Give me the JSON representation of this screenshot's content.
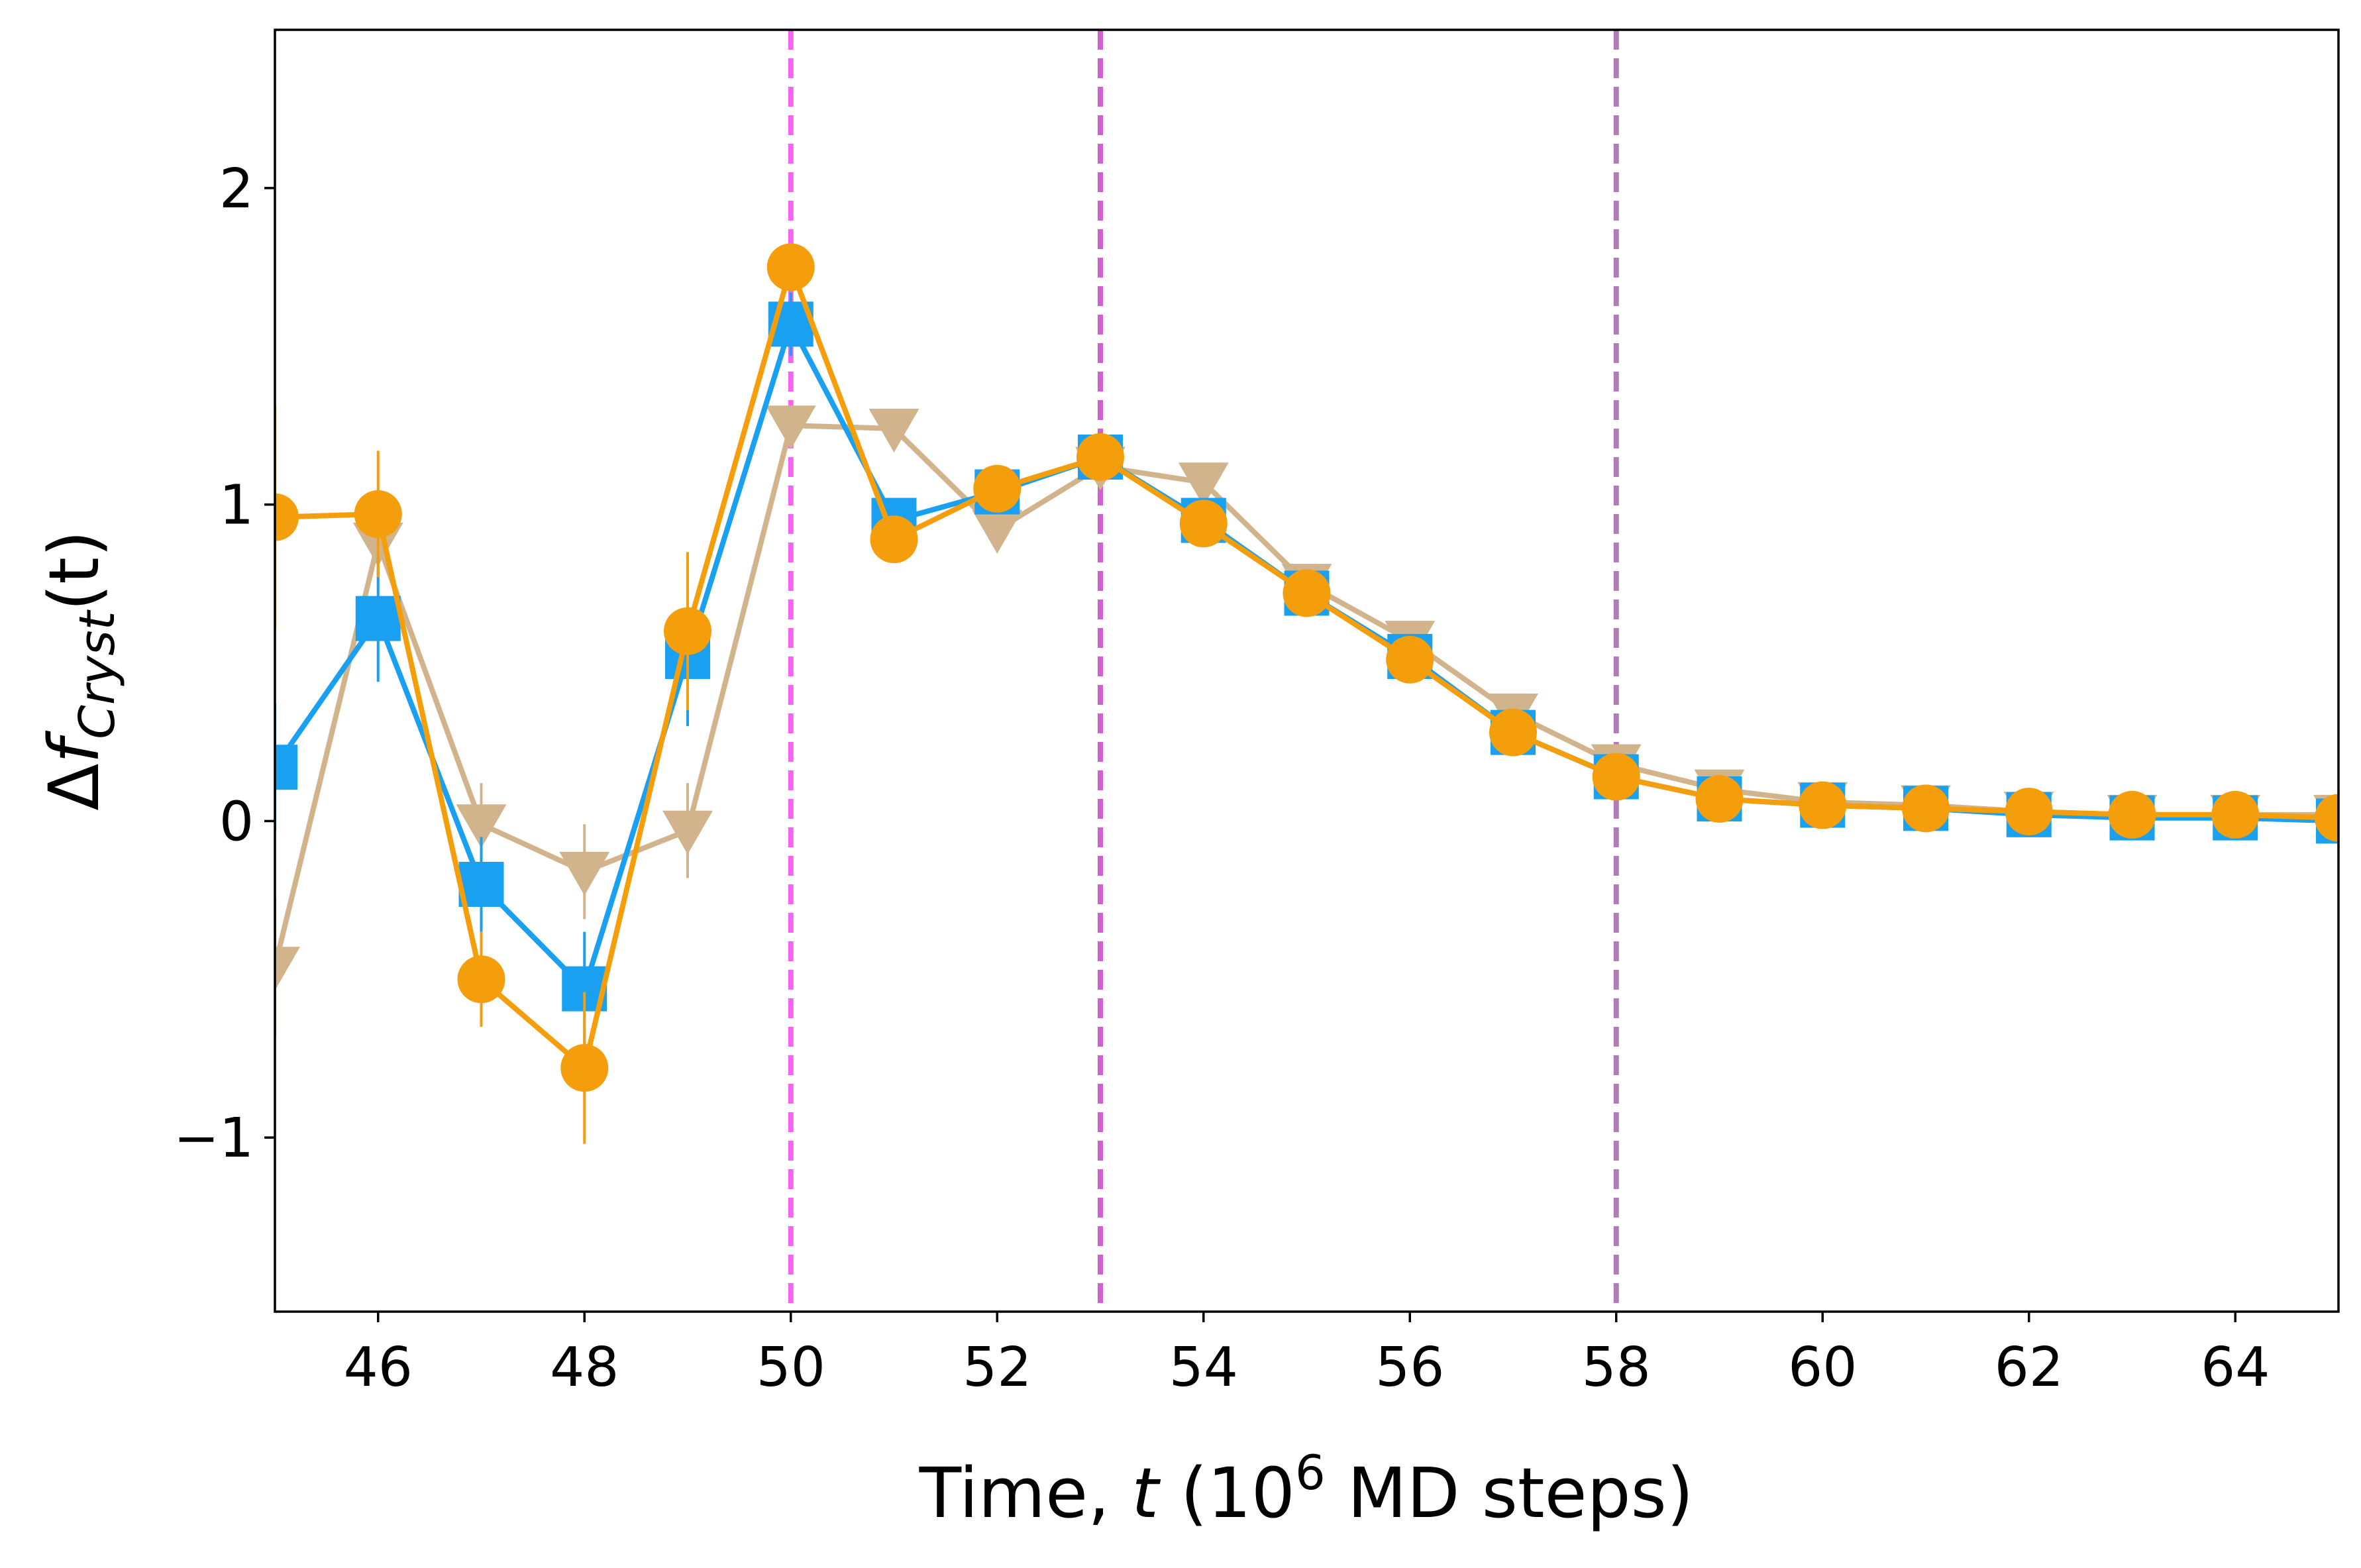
{
  "chart_data": {
    "type": "line",
    "xlabel": {
      "prefix": "Time, ",
      "var": "t",
      "mid": " (10",
      "sup": "6",
      "suffix": " MD steps)"
    },
    "ylabel": {
      "delta": "Δ",
      "var": "f",
      "sub": "Cryst",
      "arg": "(t)"
    },
    "xlim": [
      45,
      65
    ],
    "ylim": [
      -1.55,
      2.5
    ],
    "xticks": [
      46,
      48,
      50,
      52,
      54,
      56,
      58,
      60,
      62,
      64
    ],
    "xtick_labels": [
      "46",
      "48",
      "50",
      "52",
      "54",
      "56",
      "58",
      "60",
      "62",
      "64"
    ],
    "yticks": [
      -1,
      0,
      1,
      2
    ],
    "ytick_labels": [
      "−1",
      "0",
      "1",
      "2"
    ],
    "vlines": [
      {
        "x": 50,
        "color": "#f564f5"
      },
      {
        "x": 53,
        "color": "#d15fd1"
      },
      {
        "x": 58,
        "color": "#b07db5"
      }
    ],
    "series": [
      {
        "color": "#d2b48c",
        "marker": "triangle-down",
        "x": [
          45,
          46,
          47,
          48,
          49,
          50,
          51,
          52,
          53,
          54,
          55,
          56,
          57,
          58,
          59,
          60,
          61,
          62,
          63,
          64,
          65
        ],
        "y": [
          -0.46,
          0.88,
          -0.01,
          -0.16,
          -0.03,
          1.25,
          1.24,
          0.92,
          1.12,
          1.07,
          0.75,
          0.57,
          0.34,
          0.18,
          0.1,
          0.06,
          0.05,
          0.03,
          0.02,
          0.02,
          0.02
        ],
        "err": [
          0.22,
          0.15,
          0.13,
          0.15,
          0.15,
          0.0,
          0.0,
          0.0,
          0.0,
          0.0,
          0.0,
          0.0,
          0.0,
          0.0,
          0.0,
          0.0,
          0.0,
          0.0,
          0.0,
          0.0,
          0.0
        ]
      },
      {
        "color": "#1aa0f0",
        "marker": "square",
        "x": [
          45,
          46,
          47,
          48,
          49,
          50,
          51,
          52,
          53,
          54,
          55,
          56,
          57,
          58,
          59,
          60,
          61,
          62,
          63,
          64,
          65
        ],
        "y": [
          0.17,
          0.64,
          -0.2,
          -0.53,
          0.52,
          1.57,
          0.95,
          1.04,
          1.15,
          0.95,
          0.72,
          0.52,
          0.28,
          0.14,
          0.07,
          0.05,
          0.04,
          0.02,
          0.01,
          0.01,
          0.0
        ],
        "err": [
          0.2,
          0.2,
          0.15,
          0.18,
          0.22,
          0.1,
          0.0,
          0.0,
          0.0,
          0.0,
          0.0,
          0.0,
          0.0,
          0.0,
          0.0,
          0.0,
          0.0,
          0.0,
          0.0,
          0.0,
          0.0
        ]
      },
      {
        "color": "#f59e0b",
        "marker": "circle",
        "x": [
          45,
          46,
          47,
          48,
          49,
          50,
          51,
          52,
          53,
          54,
          55,
          56,
          57,
          58,
          59,
          60,
          61,
          62,
          63,
          64,
          65
        ],
        "y": [
          0.96,
          0.97,
          -0.5,
          -0.78,
          0.6,
          1.75,
          0.89,
          1.05,
          1.15,
          0.94,
          0.72,
          0.51,
          0.28,
          0.14,
          0.07,
          0.05,
          0.04,
          0.03,
          0.02,
          0.02,
          0.01
        ],
        "err": [
          0.35,
          0.2,
          0.15,
          0.24,
          0.25,
          0.0,
          0.0,
          0.0,
          0.0,
          0.0,
          0.0,
          0.0,
          0.0,
          0.0,
          0.0,
          0.0,
          0.0,
          0.0,
          0.0,
          0.0,
          0.0
        ]
      }
    ]
  }
}
